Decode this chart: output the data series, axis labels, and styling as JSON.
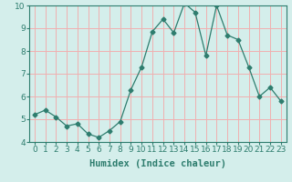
{
  "x": [
    0,
    1,
    2,
    3,
    4,
    5,
    6,
    7,
    8,
    9,
    10,
    11,
    12,
    13,
    14,
    15,
    16,
    17,
    18,
    19,
    20,
    21,
    22,
    23
  ],
  "y": [
    5.2,
    5.4,
    5.1,
    4.7,
    4.8,
    4.35,
    4.2,
    4.5,
    4.9,
    6.3,
    7.3,
    8.85,
    9.4,
    8.8,
    10.1,
    9.7,
    7.8,
    10.0,
    8.7,
    8.5,
    7.3,
    6.0,
    6.4,
    5.8
  ],
  "line_color": "#2e7d6e",
  "marker": "D",
  "marker_size": 2.5,
  "xlabel": "Humidex (Indice chaleur)",
  "ylim": [
    4,
    10
  ],
  "yticks": [
    4,
    5,
    6,
    7,
    8,
    9,
    10
  ],
  "xticks": [
    0,
    1,
    2,
    3,
    4,
    5,
    6,
    7,
    8,
    9,
    10,
    11,
    12,
    13,
    14,
    15,
    16,
    17,
    18,
    19,
    20,
    21,
    22,
    23
  ],
  "background_color": "#d4eeeb",
  "grid_color": "#f0b0b0",
  "xlabel_fontsize": 7.5,
  "tick_fontsize": 6.5
}
